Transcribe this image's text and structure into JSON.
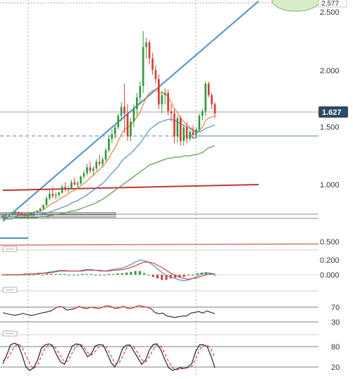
{
  "chart_data": [
    {
      "type": "candlestick",
      "panel": "price",
      "price_axis_ticks": [
        "2.500",
        "2.000",
        "1.500",
        "1.000",
        "0.500"
      ],
      "current_price_label": "1.627",
      "top_label": "2.577",
      "candles": [
        [
          0.72,
          0.74,
          0.7,
          0.73
        ],
        [
          0.73,
          0.75,
          0.72,
          0.74
        ],
        [
          0.74,
          0.75,
          0.73,
          0.74
        ],
        [
          0.74,
          0.76,
          0.73,
          0.75
        ],
        [
          0.75,
          0.77,
          0.74,
          0.76
        ],
        [
          0.76,
          0.77,
          0.74,
          0.75
        ],
        [
          0.75,
          0.76,
          0.73,
          0.74
        ],
        [
          0.74,
          0.75,
          0.72,
          0.73
        ],
        [
          0.73,
          0.75,
          0.72,
          0.74
        ],
        [
          0.74,
          0.76,
          0.73,
          0.75
        ],
        [
          0.75,
          0.77,
          0.74,
          0.76
        ],
        [
          0.76,
          0.78,
          0.75,
          0.77
        ],
        [
          0.77,
          0.8,
          0.76,
          0.79
        ],
        [
          0.79,
          0.83,
          0.78,
          0.82
        ],
        [
          0.82,
          0.9,
          0.81,
          0.88
        ],
        [
          0.88,
          0.95,
          0.86,
          0.92
        ],
        [
          0.92,
          0.98,
          0.88,
          0.9
        ],
        [
          0.9,
          0.93,
          0.87,
          0.91
        ],
        [
          0.91,
          0.94,
          0.89,
          0.93
        ],
        [
          0.93,
          1.0,
          0.92,
          0.98
        ],
        [
          0.98,
          1.02,
          0.94,
          0.96
        ],
        [
          0.96,
          0.99,
          0.93,
          0.97
        ],
        [
          0.97,
          1.04,
          0.96,
          1.02
        ],
        [
          1.02,
          1.06,
          0.99,
          1.0
        ],
        [
          1.0,
          1.03,
          0.97,
          1.01
        ],
        [
          1.01,
          1.08,
          1.0,
          1.07
        ],
        [
          1.07,
          1.12,
          1.05,
          1.1
        ],
        [
          1.1,
          1.18,
          1.08,
          1.15
        ],
        [
          1.15,
          1.2,
          1.1,
          1.12
        ],
        [
          1.12,
          1.16,
          1.08,
          1.14
        ],
        [
          1.14,
          1.22,
          1.12,
          1.2
        ],
        [
          1.2,
          1.26,
          1.16,
          1.18
        ],
        [
          1.18,
          1.24,
          1.15,
          1.22
        ],
        [
          1.22,
          1.32,
          1.2,
          1.3
        ],
        [
          1.3,
          1.42,
          1.28,
          1.4
        ],
        [
          1.4,
          1.48,
          1.36,
          1.44
        ],
        [
          1.44,
          1.52,
          1.4,
          1.5
        ],
        [
          1.5,
          1.62,
          1.48,
          1.6
        ],
        [
          1.6,
          1.72,
          1.55,
          1.68
        ],
        [
          1.68,
          1.88,
          1.45,
          1.62
        ],
        [
          1.62,
          1.7,
          1.38,
          1.42
        ],
        [
          1.42,
          1.58,
          1.38,
          1.55
        ],
        [
          1.55,
          1.7,
          1.5,
          1.66
        ],
        [
          1.66,
          1.8,
          1.6,
          1.76
        ],
        [
          1.76,
          1.9,
          1.7,
          1.86
        ],
        [
          1.86,
          2.34,
          1.8,
          2.2
        ],
        [
          2.2,
          2.28,
          2.1,
          2.24
        ],
        [
          2.24,
          2.26,
          2.05,
          2.1
        ],
        [
          2.1,
          2.15,
          1.96,
          2.0
        ],
        [
          2.0,
          2.04,
          1.88,
          1.92
        ],
        [
          1.92,
          1.96,
          1.66,
          1.7
        ],
        [
          1.7,
          1.82,
          1.62,
          1.78
        ],
        [
          1.78,
          1.84,
          1.7,
          1.8
        ],
        [
          1.8,
          1.83,
          1.6,
          1.64
        ],
        [
          1.64,
          1.7,
          1.55,
          1.62
        ],
        [
          1.62,
          1.66,
          1.36,
          1.42
        ],
        [
          1.42,
          1.6,
          1.36,
          1.58
        ],
        [
          1.58,
          1.6,
          1.34,
          1.38
        ],
        [
          1.38,
          1.52,
          1.34,
          1.5
        ],
        [
          1.5,
          1.54,
          1.36,
          1.4
        ],
        [
          1.4,
          1.48,
          1.38,
          1.46
        ],
        [
          1.46,
          1.52,
          1.4,
          1.44
        ],
        [
          1.44,
          1.5,
          1.4,
          1.48
        ],
        [
          1.48,
          1.62,
          1.46,
          1.6
        ],
        [
          1.6,
          1.66,
          1.56,
          1.64
        ],
        [
          1.64,
          1.9,
          1.6,
          1.88
        ],
        [
          1.88,
          1.9,
          1.76,
          1.78
        ],
        [
          1.78,
          1.8,
          1.66,
          1.7
        ],
        [
          1.7,
          1.72,
          1.58,
          1.62
        ]
      ],
      "indicators": [
        {
          "kind": "moving-average",
          "color": "#f07f3c",
          "values": [
            0.72,
            0.73,
            0.74,
            0.74,
            0.75,
            0.75,
            0.75,
            0.75,
            0.75,
            0.75,
            0.75,
            0.76,
            0.77,
            0.78,
            0.8,
            0.82,
            0.84,
            0.85,
            0.87,
            0.89,
            0.9,
            0.92,
            0.94,
            0.95,
            0.97,
            0.99,
            1.01,
            1.03,
            1.06,
            1.08,
            1.11,
            1.13,
            1.16,
            1.19,
            1.23,
            1.28,
            1.32,
            1.38,
            1.44,
            1.48,
            1.5,
            1.52,
            1.55,
            1.59,
            1.63,
            1.7,
            1.76,
            1.8,
            1.82,
            1.83,
            1.8,
            1.8,
            1.8,
            1.76,
            1.72,
            1.66,
            1.63,
            1.58,
            1.55,
            1.52,
            1.5,
            1.48,
            1.46,
            1.47,
            1.5,
            1.56,
            1.58,
            1.59,
            1.6
          ]
        },
        {
          "kind": "moving-average",
          "color": "#4f8fc6",
          "values": [
            0.71,
            0.71,
            0.72,
            0.72,
            0.72,
            0.73,
            0.73,
            0.73,
            0.73,
            0.73,
            0.73,
            0.74,
            0.74,
            0.75,
            0.75,
            0.76,
            0.77,
            0.78,
            0.79,
            0.8,
            0.81,
            0.82,
            0.84,
            0.85,
            0.86,
            0.88,
            0.89,
            0.91,
            0.93,
            0.95,
            0.97,
            0.99,
            1.01,
            1.04,
            1.07,
            1.1,
            1.13,
            1.16,
            1.2,
            1.23,
            1.25,
            1.27,
            1.3,
            1.33,
            1.36,
            1.4,
            1.44,
            1.48,
            1.5,
            1.52,
            1.54,
            1.55,
            1.56,
            1.57,
            1.57,
            1.56,
            1.55,
            1.53,
            1.52,
            1.5,
            1.49,
            1.47,
            1.46,
            1.46,
            1.47,
            1.49,
            1.5,
            1.51,
            1.52
          ]
        },
        {
          "kind": "moving-average",
          "color": "#5a9b4a",
          "values": [
            0.7,
            0.7,
            0.7,
            0.7,
            0.71,
            0.71,
            0.71,
            0.71,
            0.71,
            0.71,
            0.71,
            0.71,
            0.72,
            0.72,
            0.72,
            0.73,
            0.73,
            0.74,
            0.74,
            0.75,
            0.75,
            0.76,
            0.77,
            0.77,
            0.78,
            0.79,
            0.8,
            0.81,
            0.82,
            0.83,
            0.84,
            0.86,
            0.87,
            0.89,
            0.91,
            0.93,
            0.95,
            0.97,
            0.99,
            1.01,
            1.03,
            1.05,
            1.07,
            1.09,
            1.11,
            1.13,
            1.15,
            1.17,
            1.18,
            1.19,
            1.2,
            1.21,
            1.22,
            1.23,
            1.23,
            1.24,
            1.24,
            1.24,
            1.25,
            1.25,
            1.25,
            1.26,
            1.26,
            1.27,
            1.28,
            1.3,
            1.32,
            1.33,
            1.34
          ]
        }
      ],
      "trendlines": [
        {
          "color": "#4f8fc6",
          "from": [
            0,
            0.68
          ],
          "to": [
            82,
            2.6
          ]
        },
        {
          "color": "#c0392b",
          "from": [
            0,
            0.95
          ],
          "to": [
            82,
            1.0
          ]
        }
      ]
    },
    {
      "type": "line",
      "panel": "MACD",
      "axis_ticks": [
        "0.200",
        "0.000"
      ],
      "series": [
        {
          "color": "#4f8fc6",
          "values": [
            0.0,
            0.0,
            0.0,
            0.0,
            0.0,
            0.01,
            0.01,
            0.01,
            0.02,
            0.02,
            0.03,
            0.04,
            0.05,
            0.06,
            0.06,
            0.05,
            0.05,
            0.05,
            0.06,
            0.07,
            0.07,
            0.06,
            0.05,
            0.05,
            0.06,
            0.07,
            0.08,
            0.09,
            0.11,
            0.14,
            0.17,
            0.2,
            0.19,
            0.17,
            0.13,
            0.08,
            0.03,
            -0.01,
            -0.03,
            -0.05,
            -0.07,
            -0.08,
            -0.07,
            -0.05,
            -0.02,
            0.01,
            0.03,
            0.02,
            0.01
          ]
        },
        {
          "color": "#d9403a",
          "values": [
            0.0,
            0.0,
            0.0,
            0.0,
            0.0,
            0.0,
            0.01,
            0.01,
            0.01,
            0.02,
            0.02,
            0.03,
            0.04,
            0.05,
            0.05,
            0.05,
            0.05,
            0.05,
            0.05,
            0.06,
            0.06,
            0.06,
            0.06,
            0.05,
            0.05,
            0.06,
            0.06,
            0.07,
            0.08,
            0.1,
            0.12,
            0.15,
            0.17,
            0.17,
            0.16,
            0.13,
            0.1,
            0.06,
            0.02,
            -0.01,
            -0.03,
            -0.05,
            -0.06,
            -0.05,
            -0.04,
            -0.02,
            0.0,
            0.01,
            0.01
          ]
        }
      ],
      "histogram": [
        0.0,
        0.0,
        0.0,
        0.0,
        0.0,
        0.01,
        0.0,
        0.0,
        0.01,
        0.0,
        0.01,
        0.01,
        0.01,
        0.01,
        0.01,
        0.0,
        0.0,
        0.0,
        0.01,
        0.01,
        0.01,
        0.0,
        -0.01,
        0.0,
        0.01,
        0.01,
        0.02,
        0.02,
        0.03,
        0.04,
        0.05,
        0.05,
        0.02,
        0.0,
        -0.03,
        -0.05,
        -0.07,
        -0.07,
        -0.05,
        -0.04,
        -0.04,
        -0.03,
        -0.01,
        0.0,
        0.02,
        0.03,
        0.03,
        0.01,
        0.0
      ]
    },
    {
      "type": "line",
      "panel": "RSI",
      "axis_ticks": [
        "70",
        "30"
      ],
      "values": [
        55,
        52,
        50,
        48,
        50,
        53,
        50,
        48,
        49,
        52,
        55,
        57,
        60,
        66,
        72,
        70,
        62,
        64,
        66,
        72,
        68,
        66,
        70,
        68,
        66,
        70,
        74,
        72,
        66,
        68,
        72,
        68,
        66,
        70,
        74,
        72,
        70,
        66,
        56,
        52,
        54,
        46,
        44,
        42,
        44,
        46,
        46,
        54,
        56,
        58,
        54,
        60,
        56,
        52
      ]
    },
    {
      "type": "line",
      "panel": "stochastic",
      "axis_ticks": [
        "80",
        "20"
      ],
      "series": [
        {
          "color": "#222222",
          "values": [
            30,
            55,
            85,
            90,
            85,
            55,
            20,
            10,
            18,
            40,
            75,
            85,
            88,
            80,
            55,
            35,
            28,
            55,
            82,
            88,
            86,
            70,
            50,
            60,
            82,
            86,
            84,
            62,
            35,
            20,
            40,
            74,
            84,
            85,
            66,
            48,
            28,
            40,
            70,
            86,
            88,
            70,
            42,
            18,
            10,
            14,
            18,
            16,
            20,
            30,
            65,
            85,
            86,
            80,
            52,
            18
          ]
        },
        {
          "color": "#d9403a",
          "dash": true,
          "values": [
            40,
            42,
            60,
            80,
            88,
            78,
            55,
            30,
            15,
            25,
            52,
            75,
            86,
            85,
            72,
            52,
            35,
            38,
            62,
            82,
            88,
            80,
            62,
            55,
            66,
            80,
            86,
            76,
            55,
            32,
            28,
            50,
            74,
            84,
            78,
            62,
            42,
            34,
            50,
            72,
            86,
            80,
            60,
            36,
            18,
            12,
            14,
            16,
            18,
            22,
            42,
            70,
            84,
            85,
            72,
            48
          ]
        }
      ]
    }
  ]
}
